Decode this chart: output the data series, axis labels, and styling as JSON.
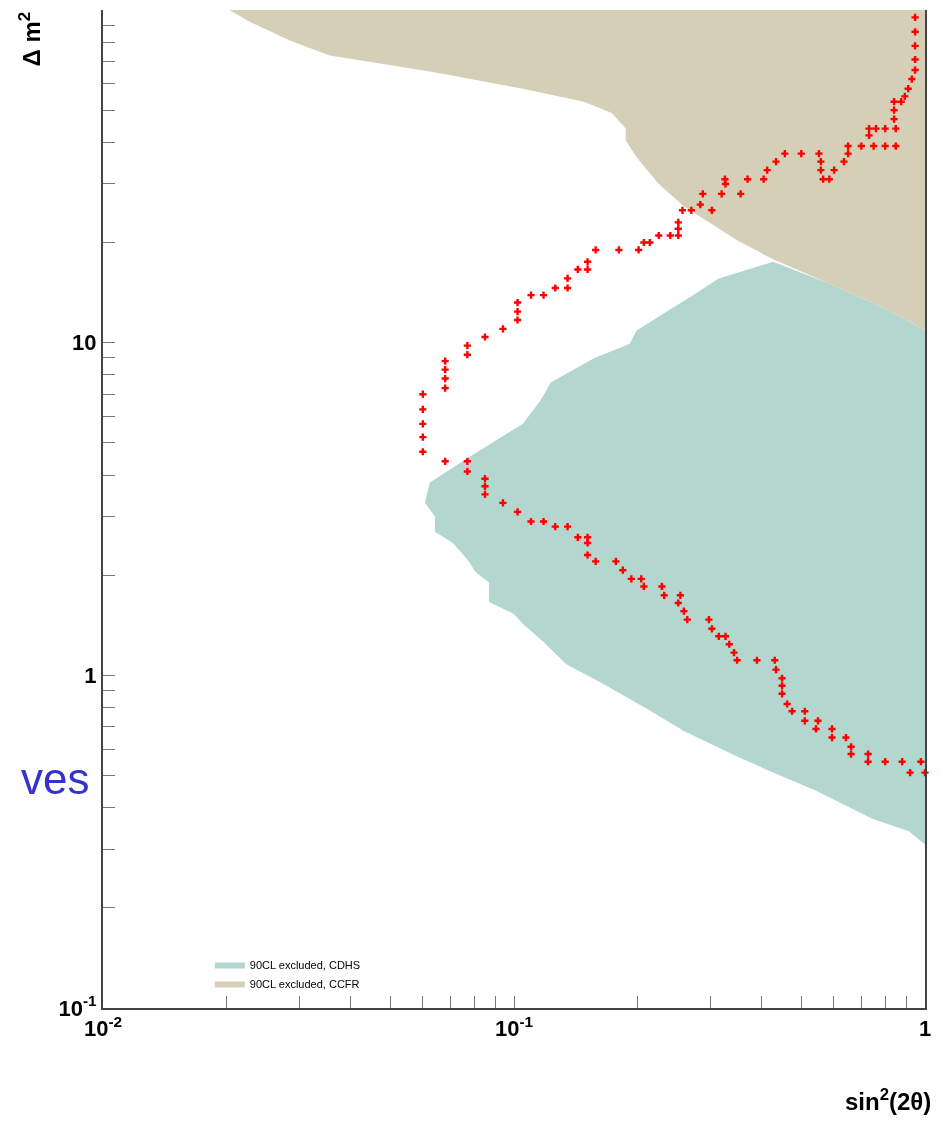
{
  "chart_data": {
    "type": "scatter",
    "xlabel": "sin$^{2}$(2θ)",
    "ylabel": "Δ m$^{2}$",
    "annotations": [
      "ves"
    ],
    "log": "xy",
    "grid": false,
    "legend": "bottom left",
    "xlim": [
      0.01,
      1
    ],
    "ylim": [
      0.1,
      100
    ],
    "xticks": [
      {
        "value": 0.01,
        "label": "10$^{-2}$"
      },
      {
        "value": 0.02,
        "label": null
      },
      {
        "value": 0.03,
        "label": null
      },
      {
        "value": 0.04,
        "label": null
      },
      {
        "value": 0.05,
        "label": null
      },
      {
        "value": 0.06,
        "label": null
      },
      {
        "value": 0.07,
        "label": null
      },
      {
        "value": 0.08,
        "label": null
      },
      {
        "value": 0.09,
        "label": null
      },
      {
        "value": 0.1,
        "label": "10$^{-1}$"
      },
      {
        "value": 0.2,
        "label": null
      },
      {
        "value": 0.3,
        "label": null
      },
      {
        "value": 0.4,
        "label": null
      },
      {
        "value": 0.5,
        "label": null
      },
      {
        "value": 0.6,
        "label": null
      },
      {
        "value": 0.7,
        "label": null
      },
      {
        "value": 0.8,
        "label": null
      },
      {
        "value": 0.9,
        "label": null
      },
      1
    ],
    "yticks": [
      {
        "value": 0.1,
        "label": "10$^{-1}$"
      },
      {
        "value": 0.2,
        "label": null
      },
      {
        "value": 0.3,
        "label": null
      },
      {
        "value": 0.4,
        "label": null
      },
      {
        "value": 0.5,
        "label": null
      },
      {
        "value": 0.6,
        "label": null
      },
      {
        "value": 0.7,
        "label": null
      },
      {
        "value": 0.8,
        "label": null
      },
      {
        "value": 0.9,
        "label": null
      },
      1,
      {
        "value": 2,
        "label": null
      },
      {
        "value": 3,
        "label": null
      },
      {
        "value": 4,
        "label": null
      },
      {
        "value": 5,
        "label": null
      },
      {
        "value": 6,
        "label": null
      },
      {
        "value": 7,
        "label": null
      },
      {
        "value": 8,
        "label": null
      },
      {
        "value": 9,
        "label": null
      },
      10,
      {
        "value": 20,
        "label": null
      },
      {
        "value": 30,
        "label": null
      },
      {
        "value": 40,
        "label": null
      },
      {
        "value": 50,
        "label": null
      },
      {
        "value": 60,
        "label": null
      },
      {
        "value": 70,
        "label": null
      },
      {
        "value": 80,
        "label": null
      },
      {
        "value": 90,
        "label": null
      }
    ],
    "series": [
      {
        "type": "area",
        "marker": "none",
        "name": "90CL excluded, CDHS",
        "color": "#b3d6cf",
        "x": [
          1,
          0.776,
          0.574,
          0.427,
          0.315,
          0.27,
          0.199,
          0.191,
          0.157,
          0.123,
          0.116,
          0.105,
          0.0794,
          0.0624,
          0.0607,
          0.0642,
          0.0642,
          0.071,
          0.0777,
          0.0804,
          0.0869,
          0.0869,
          0.1,
          0.105,
          0.118,
          0.134,
          0.163,
          0.212,
          0.259,
          0.349,
          0.427,
          0.543,
          0.747,
          0.914,
          1
        ],
        "values": [
          10.9,
          12.9,
          15.2,
          17.5,
          15.6,
          13.8,
          10.9,
          9.9,
          9,
          7.6,
          6.7,
          5.7,
          4.6,
          3.8,
          3.3,
          3,
          2.7,
          2.5,
          2.2,
          2.05,
          1.9,
          1.66,
          1.53,
          1.43,
          1.26,
          1.08,
          0.95,
          0.79,
          0.68,
          0.57,
          0.51,
          0.45,
          0.37,
          0.34,
          0.31
        ]
      },
      {
        "type": "area",
        "marker": "none",
        "name": "90CL excluded, CCFR",
        "color": "#d5cfb7",
        "x": [
          0.0203,
          0.0228,
          0.0285,
          0.0356,
          0.0472,
          0.0638,
          0.105,
          0.148,
          0.173,
          0.187,
          0.187,
          0.199,
          0.225,
          0.259,
          0.349,
          0.427,
          0.574,
          0.776,
          1,
          1
        ],
        "values": [
          100,
          92,
          81,
          73,
          69,
          65,
          58,
          53,
          49,
          44,
          40.5,
          36,
          30,
          25.7,
          20.3,
          17.8,
          15.2,
          12.9,
          10.9,
          100
        ]
      },
      {
        "marker": "cross",
        "color": "#ff0000",
        "x": [
          0.946,
          0.946,
          0.946,
          0.946,
          0.946,
          0.929,
          0.91,
          0.893,
          0.875,
          0.841,
          0.841,
          0.841,
          0.849,
          0.8,
          0.76,
          0.731,
          0.731,
          0.849,
          0.8,
          0.75,
          0.7,
          0.65,
          0.65,
          0.635,
          0.601,
          0.585,
          0.565,
          0.558,
          0.558,
          0.552,
          0.5,
          0.456,
          0.434,
          0.413,
          0.405,
          0.37,
          0.326,
          0.327,
          0.356,
          0.32,
          0.288,
          0.284,
          0.303,
          0.27,
          0.257,
          0.251,
          0.251,
          0.251,
          0.24,
          0.225,
          0.214,
          0.207,
          0.201,
          0.18,
          0.158,
          0.151,
          0.151,
          0.143,
          0.135,
          0.135,
          0.126,
          0.118,
          0.11,
          0.102,
          0.102,
          0.102,
          0.094,
          0.085,
          0.077,
          0.077,
          0.068,
          0.068,
          0.068,
          0.068,
          0.06,
          0.06,
          0.06,
          0.06,
          0.06,
          0.068,
          0.077,
          0.077,
          0.085,
          0.085,
          0.085,
          0.094,
          0.102,
          0.11,
          0.118,
          0.126,
          0.135,
          0.143,
          0.151,
          0.151,
          0.151,
          0.158,
          0.177,
          0.184,
          0.193,
          0.204,
          0.207,
          0.229,
          0.232,
          0.254,
          0.251,
          0.259,
          0.264,
          0.298,
          0.303,
          0.315,
          0.327,
          0.334,
          0.343,
          0.349,
          0.39,
          0.431,
          0.434,
          0.449,
          0.449,
          0.449,
          0.462,
          0.475,
          0.51,
          0.51,
          0.549,
          0.543,
          0.594,
          0.594,
          0.642,
          0.661,
          0.661,
          0.727,
          0.727,
          0.8,
          0.88,
          0.977,
          0.92,
          1
        ],
        "values": [
          95,
          86,
          78,
          71,
          66,
          62,
          58,
          55,
          53,
          53,
          50,
          47,
          44,
          44,
          44,
          44,
          42,
          39,
          39,
          39,
          39,
          39,
          37,
          35,
          33,
          31,
          31,
          33,
          35,
          37,
          37,
          37,
          35,
          33,
          31,
          31,
          31,
          30,
          28,
          28,
          28,
          26,
          25,
          25,
          25,
          23,
          22,
          21,
          21,
          21,
          20,
          20,
          19,
          19,
          19,
          17.5,
          16.6,
          16.6,
          15.6,
          14.6,
          14.6,
          13.9,
          13.9,
          13.2,
          12.4,
          11.7,
          11,
          10.4,
          9.8,
          9.2,
          8.8,
          8.3,
          7.8,
          7.3,
          7,
          6.3,
          5.7,
          5.2,
          4.7,
          4.4,
          4.4,
          4.1,
          3.9,
          3.7,
          3.5,
          3.3,
          3.1,
          2.9,
          2.9,
          2.8,
          2.8,
          2.6,
          2.6,
          2.5,
          2.3,
          2.2,
          2.2,
          2.07,
          1.95,
          1.95,
          1.85,
          1.85,
          1.74,
          1.74,
          1.65,
          1.56,
          1.47,
          1.47,
          1.38,
          1.31,
          1.31,
          1.24,
          1.17,
          1.11,
          1.11,
          1.11,
          1.04,
          0.98,
          0.93,
          0.88,
          0.82,
          0.78,
          0.78,
          0.73,
          0.73,
          0.69,
          0.69,
          0.65,
          0.65,
          0.61,
          0.58,
          0.58,
          0.55,
          0.55,
          0.55,
          0.55,
          0.51,
          0.51
        ]
      }
    ]
  }
}
